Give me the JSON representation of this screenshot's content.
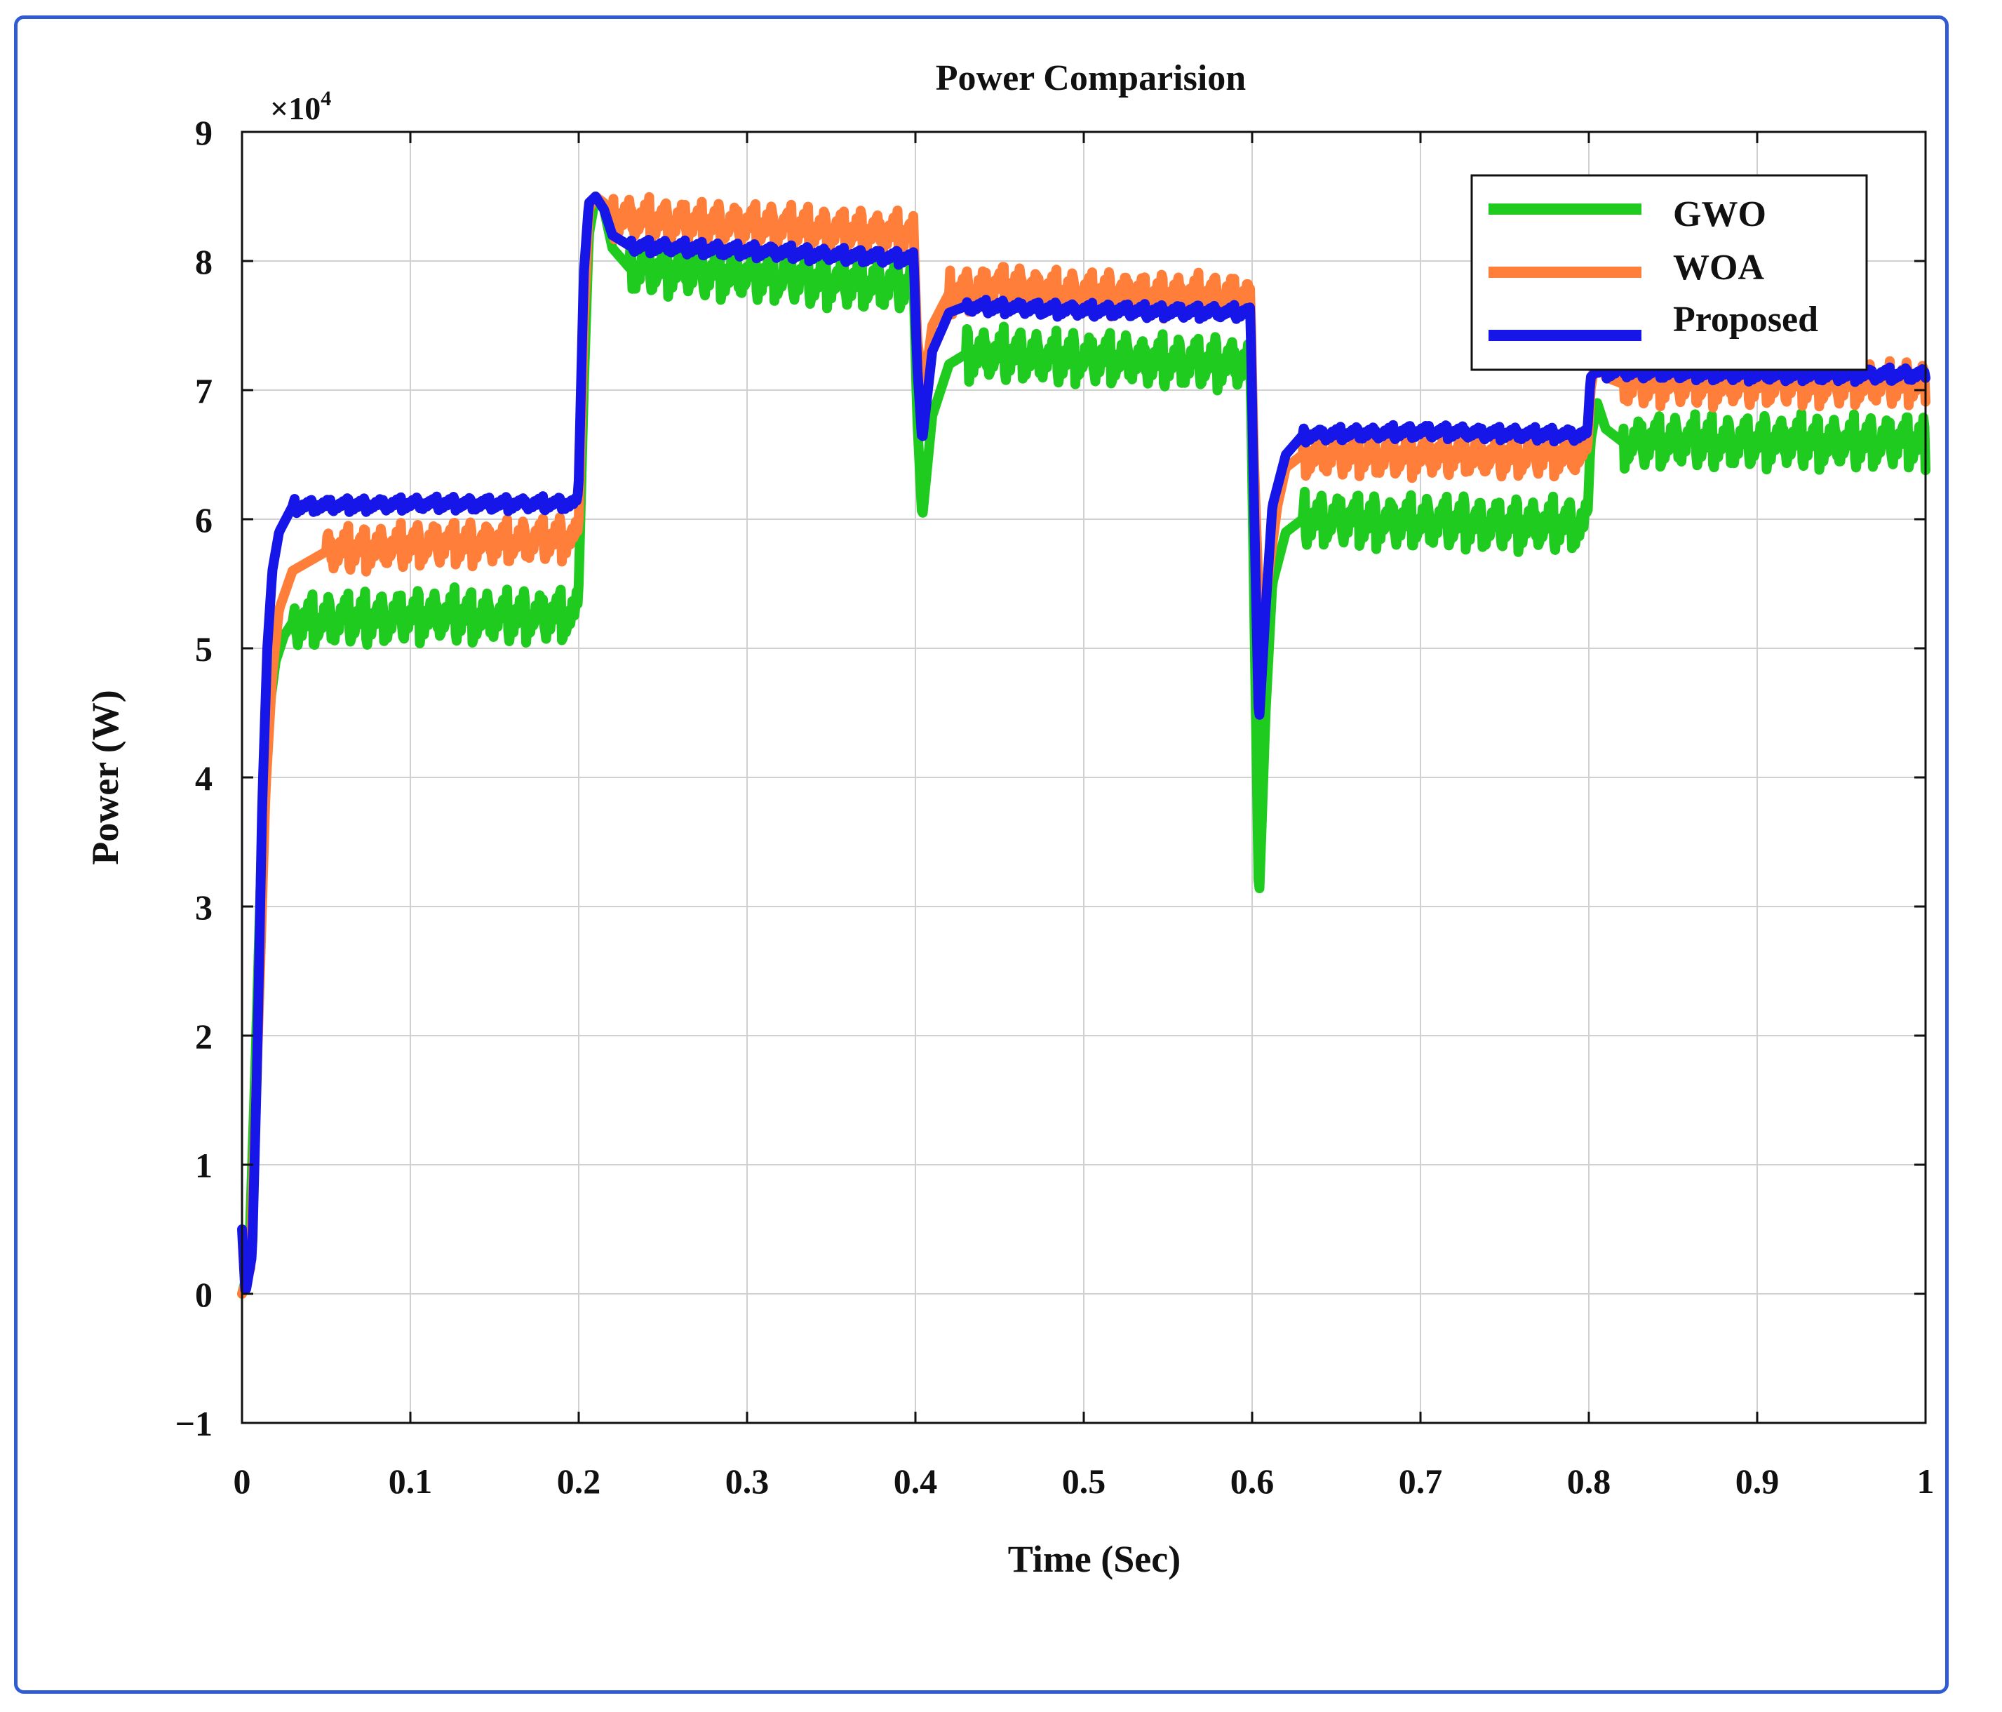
{
  "chart_data": {
    "type": "line",
    "title": "Power Comparision",
    "xlabel": "Time (Sec)",
    "ylabel": "Power (W)",
    "y_multiplier_label": "×10",
    "y_multiplier_exponent": "4",
    "xlim": [
      0,
      1
    ],
    "ylim": [
      -1,
      9
    ],
    "y_unit_scale": 10000,
    "x_ticks": [
      0,
      0.1,
      0.2,
      0.3,
      0.4,
      0.5,
      0.6,
      0.7,
      0.8,
      0.9,
      1
    ],
    "x_tick_labels": [
      "0",
      "0.1",
      "0.2",
      "0.3",
      "0.4",
      "0.5",
      "0.6",
      "0.7",
      "0.8",
      "0.9",
      "1"
    ],
    "y_ticks": [
      -1,
      0,
      1,
      2,
      3,
      4,
      5,
      6,
      7,
      8,
      9
    ],
    "y_tick_labels": [
      "−1",
      "0",
      "1",
      "2",
      "3",
      "4",
      "5",
      "6",
      "7",
      "8",
      "9"
    ],
    "grid": true,
    "legend_position": "top-right",
    "series": [
      {
        "name": "GWO",
        "color": "#1ecb1e",
        "ripple": 0.3,
        "points": [
          [
            0,
            0
          ],
          [
            0.004,
            0.2
          ],
          [
            0.008,
            1.8
          ],
          [
            0.012,
            3.6
          ],
          [
            0.016,
            4.5
          ],
          [
            0.02,
            4.9
          ],
          [
            0.025,
            5.1
          ],
          [
            0.03,
            5.2
          ],
          [
            0.1,
            5.25
          ],
          [
            0.199,
            5.25
          ],
          [
            0.2,
            5.5
          ],
          [
            0.203,
            7.0
          ],
          [
            0.206,
            8.2
          ],
          [
            0.21,
            8.5
          ],
          [
            0.215,
            8.4
          ],
          [
            0.22,
            8.1
          ],
          [
            0.23,
            7.95
          ],
          [
            0.3,
            7.9
          ],
          [
            0.399,
            7.8
          ],
          [
            0.401,
            6.8
          ],
          [
            0.404,
            6.0
          ],
          [
            0.41,
            6.8
          ],
          [
            0.42,
            7.2
          ],
          [
            0.43,
            7.28
          ],
          [
            0.5,
            7.25
          ],
          [
            0.599,
            7.2
          ],
          [
            0.601,
            5.5
          ],
          [
            0.604,
            3.0
          ],
          [
            0.608,
            4.5
          ],
          [
            0.612,
            5.5
          ],
          [
            0.62,
            5.9
          ],
          [
            0.63,
            6.0
          ],
          [
            0.7,
            5.98
          ],
          [
            0.799,
            5.95
          ],
          [
            0.801,
            6.6
          ],
          [
            0.805,
            6.9
          ],
          [
            0.81,
            6.7
          ],
          [
            0.82,
            6.6
          ],
          [
            0.9,
            6.6
          ],
          [
            1.0,
            6.6
          ]
        ]
      },
      {
        "name": "WOA",
        "color": "#ff7f3a",
        "ripple": 0.25,
        "points": [
          [
            0,
            0
          ],
          [
            0.005,
            0.2
          ],
          [
            0.01,
            2.2
          ],
          [
            0.014,
            3.9
          ],
          [
            0.018,
            4.8
          ],
          [
            0.022,
            5.3
          ],
          [
            0.03,
            5.6
          ],
          [
            0.05,
            5.75
          ],
          [
            0.1,
            5.8
          ],
          [
            0.199,
            5.85
          ],
          [
            0.2,
            6.0
          ],
          [
            0.203,
            7.5
          ],
          [
            0.206,
            8.4
          ],
          [
            0.21,
            8.5
          ],
          [
            0.215,
            8.45
          ],
          [
            0.22,
            8.35
          ],
          [
            0.25,
            8.3
          ],
          [
            0.3,
            8.28
          ],
          [
            0.399,
            8.2
          ],
          [
            0.401,
            7.4
          ],
          [
            0.405,
            7.0
          ],
          [
            0.41,
            7.5
          ],
          [
            0.42,
            7.75
          ],
          [
            0.45,
            7.8
          ],
          [
            0.5,
            7.75
          ],
          [
            0.599,
            7.72
          ],
          [
            0.601,
            6.5
          ],
          [
            0.605,
            5.0
          ],
          [
            0.61,
            5.6
          ],
          [
            0.615,
            6.1
          ],
          [
            0.62,
            6.4
          ],
          [
            0.63,
            6.5
          ],
          [
            0.7,
            6.5
          ],
          [
            0.799,
            6.5
          ],
          [
            0.801,
            7.0
          ],
          [
            0.805,
            7.3
          ],
          [
            0.81,
            7.1
          ],
          [
            0.82,
            7.05
          ],
          [
            0.9,
            7.05
          ],
          [
            1.0,
            7.05
          ]
        ]
      },
      {
        "name": "Proposed",
        "color": "#1616e8",
        "ripple": 0.08,
        "points": [
          [
            0,
            0.5
          ],
          [
            0.002,
            0.0
          ],
          [
            0.006,
            0.3
          ],
          [
            0.009,
            1.8
          ],
          [
            0.012,
            3.8
          ],
          [
            0.015,
            5.0
          ],
          [
            0.018,
            5.6
          ],
          [
            0.022,
            5.9
          ],
          [
            0.03,
            6.1
          ],
          [
            0.1,
            6.12
          ],
          [
            0.199,
            6.12
          ],
          [
            0.2,
            6.3
          ],
          [
            0.203,
            7.9
          ],
          [
            0.206,
            8.45
          ],
          [
            0.21,
            8.5
          ],
          [
            0.215,
            8.4
          ],
          [
            0.22,
            8.2
          ],
          [
            0.23,
            8.12
          ],
          [
            0.3,
            8.08
          ],
          [
            0.399,
            8.02
          ],
          [
            0.401,
            7.2
          ],
          [
            0.404,
            6.6
          ],
          [
            0.41,
            7.3
          ],
          [
            0.42,
            7.6
          ],
          [
            0.43,
            7.65
          ],
          [
            0.5,
            7.62
          ],
          [
            0.599,
            7.6
          ],
          [
            0.601,
            6.2
          ],
          [
            0.604,
            4.4
          ],
          [
            0.608,
            5.3
          ],
          [
            0.612,
            6.1
          ],
          [
            0.62,
            6.5
          ],
          [
            0.63,
            6.65
          ],
          [
            0.7,
            6.68
          ],
          [
            0.799,
            6.65
          ],
          [
            0.801,
            7.1
          ],
          [
            0.805,
            7.15
          ],
          [
            0.9,
            7.12
          ],
          [
            1.0,
            7.12
          ]
        ]
      }
    ]
  }
}
